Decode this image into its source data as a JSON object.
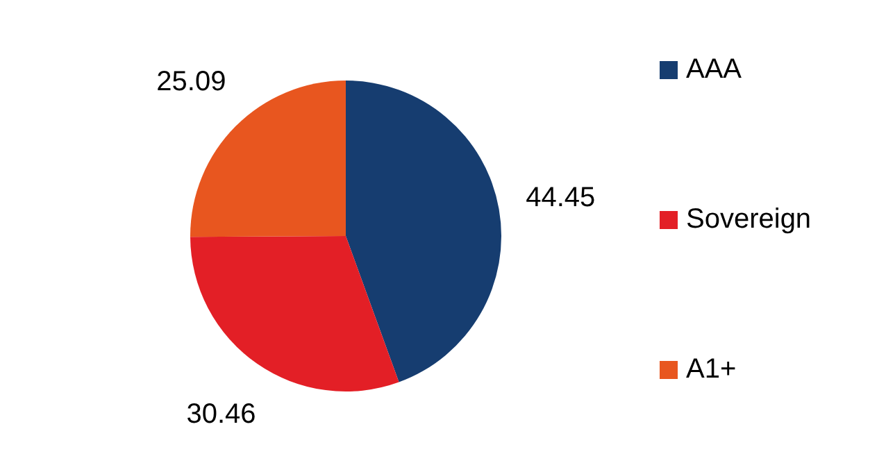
{
  "chart_data": {
    "type": "pie",
    "categories": [
      "AAA",
      "Sovereign",
      "A1+"
    ],
    "values": [
      44.45,
      30.46,
      25.09
    ],
    "colors": [
      "#163d70",
      "#e31f26",
      "#e8561f"
    ],
    "data_labels": true,
    "legend": "right"
  }
}
